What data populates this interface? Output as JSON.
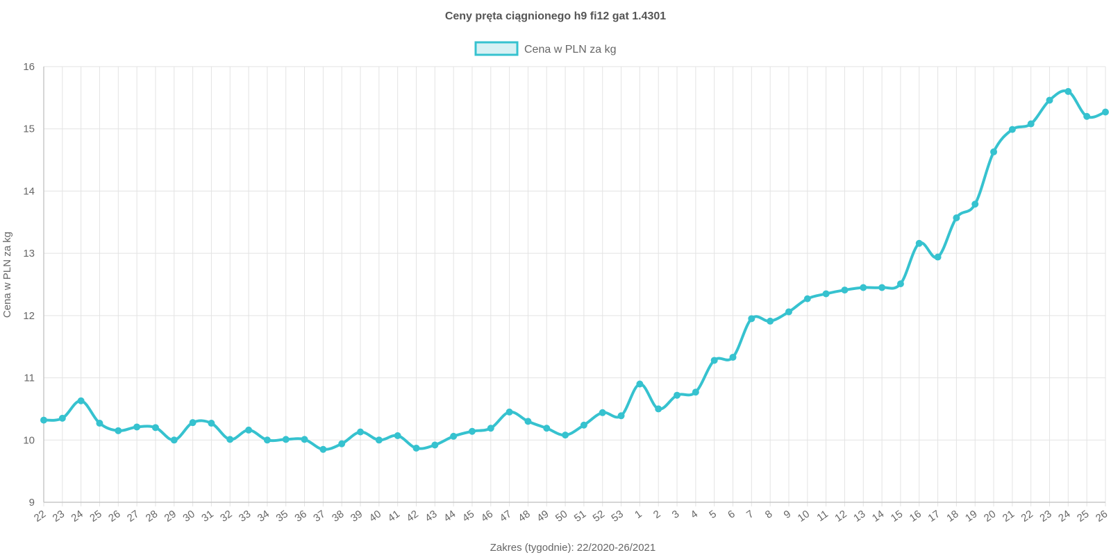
{
  "chart_data": {
    "type": "line",
    "title": "Ceny pręta ciągnionego h9 fi12 gat 1.4301",
    "xlabel": "Zakres (tygodnie): 22/2020-26/2021",
    "ylabel": "Cena w PLN za kg",
    "ylim": [
      9,
      16
    ],
    "yticks": [
      "9",
      "10",
      "11",
      "12",
      "13",
      "14",
      "15",
      "16"
    ],
    "grid": true,
    "legend_position": "top-center",
    "categories": [
      "22",
      "23",
      "24",
      "25",
      "26",
      "27",
      "28",
      "29",
      "30",
      "31",
      "32",
      "33",
      "34",
      "35",
      "36",
      "37",
      "38",
      "39",
      "40",
      "41",
      "42",
      "43",
      "44",
      "45",
      "46",
      "47",
      "48",
      "49",
      "50",
      "51",
      "52",
      "53",
      "1",
      "2",
      "3",
      "4",
      "5",
      "6",
      "7",
      "8",
      "9",
      "10",
      "11",
      "12",
      "13",
      "14",
      "15",
      "16",
      "17",
      "18",
      "19",
      "20",
      "21",
      "22",
      "23",
      "24",
      "25",
      "26"
    ],
    "series": [
      {
        "name": "Cena w PLN za kg",
        "color": "#36c2cf",
        "fill": "#d7f1f4",
        "values": [
          10.32,
          10.35,
          10.63,
          10.27,
          10.15,
          10.21,
          10.2,
          10.0,
          10.28,
          10.27,
          10.01,
          10.16,
          10.0,
          10.01,
          10.01,
          9.85,
          9.94,
          10.13,
          10.0,
          10.07,
          9.87,
          9.92,
          10.06,
          10.14,
          10.19,
          10.45,
          10.3,
          10.19,
          10.08,
          10.24,
          10.44,
          10.39,
          10.9,
          10.5,
          10.72,
          10.77,
          11.28,
          11.33,
          11.95,
          11.91,
          12.06,
          12.27,
          12.35,
          12.41,
          12.45,
          12.45,
          12.51,
          13.16,
          12.94,
          13.57,
          13.79,
          14.63,
          14.99,
          15.08,
          15.46,
          15.6,
          15.2,
          15.27
        ]
      }
    ]
  }
}
